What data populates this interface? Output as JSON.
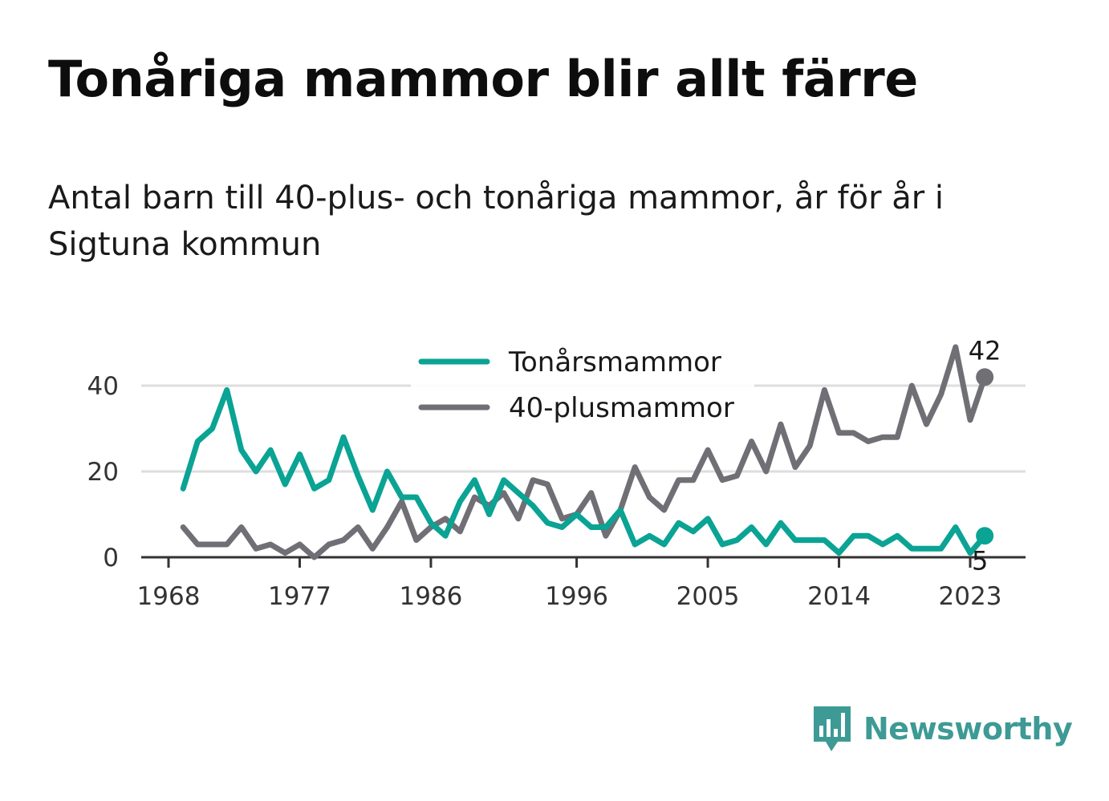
{
  "header": {
    "title": "Tonåriga mammor blir allt färre",
    "subtitle": "Antal barn till 40-plus- och tonåriga mammor, år för år i Sigtuna kommun"
  },
  "brand": {
    "name": "Newsworthy",
    "color": "#3d9a95",
    "icon": "bar-chart-speech-bubble-icon"
  },
  "chart_data": {
    "type": "line",
    "title": "Tonåriga mammor blir allt färre",
    "subtitle": "Antal barn till 40-plus- och tonåriga mammor, år för år i Sigtuna kommun",
    "xlabel": "",
    "ylabel": "",
    "x": [
      1969,
      1970,
      1971,
      1972,
      1973,
      1974,
      1975,
      1976,
      1977,
      1978,
      1979,
      1980,
      1981,
      1982,
      1983,
      1984,
      1985,
      1986,
      1987,
      1988,
      1989,
      1990,
      1991,
      1992,
      1993,
      1994,
      1995,
      1996,
      1997,
      1998,
      1999,
      2000,
      2001,
      2002,
      2003,
      2004,
      2005,
      2006,
      2007,
      2008,
      2009,
      2010,
      2011,
      2012,
      2013,
      2014,
      2015,
      2016,
      2017,
      2018,
      2019,
      2020,
      2021,
      2022,
      2023,
      2024
    ],
    "xlim": [
      1968,
      2027
    ],
    "x_ticks": [
      1968,
      1977,
      1986,
      1996,
      2005,
      2014,
      2023
    ],
    "x_tick_labels": [
      "1968",
      "1977",
      "1986",
      "1996",
      "2005",
      "2014",
      "2023"
    ],
    "ylim": [
      0,
      50
    ],
    "y_ticks": [
      0,
      20,
      40
    ],
    "y_tick_labels": [
      "0",
      "20",
      "40"
    ],
    "grid": true,
    "legend_position": "top-center",
    "series": [
      {
        "name": "Tonårsmammor",
        "color": "#0aa394",
        "values": [
          16,
          27,
          30,
          39,
          25,
          20,
          25,
          17,
          24,
          16,
          18,
          28,
          19,
          11,
          20,
          14,
          14,
          8,
          5,
          13,
          18,
          10,
          18,
          15,
          12,
          8,
          7,
          10,
          7,
          7,
          11,
          3,
          5,
          3,
          8,
          6,
          9,
          3,
          4,
          7,
          3,
          8,
          4,
          4,
          4,
          1,
          5,
          5,
          3,
          5,
          2,
          2,
          2,
          7,
          1,
          5
        ],
        "end_label": "5"
      },
      {
        "name": "40-plusmammor",
        "color": "#6f6f75",
        "values": [
          7,
          3,
          3,
          3,
          7,
          2,
          3,
          1,
          3,
          0,
          3,
          4,
          7,
          2,
          7,
          13,
          4,
          7,
          9,
          6,
          14,
          12,
          15,
          9,
          18,
          17,
          9,
          10,
          15,
          5,
          11,
          21,
          14,
          11,
          18,
          18,
          25,
          18,
          19,
          27,
          20,
          31,
          21,
          26,
          39,
          29,
          29,
          27,
          28,
          28,
          40,
          31,
          38,
          49,
          32,
          42
        ],
        "end_label": "42"
      }
    ]
  }
}
